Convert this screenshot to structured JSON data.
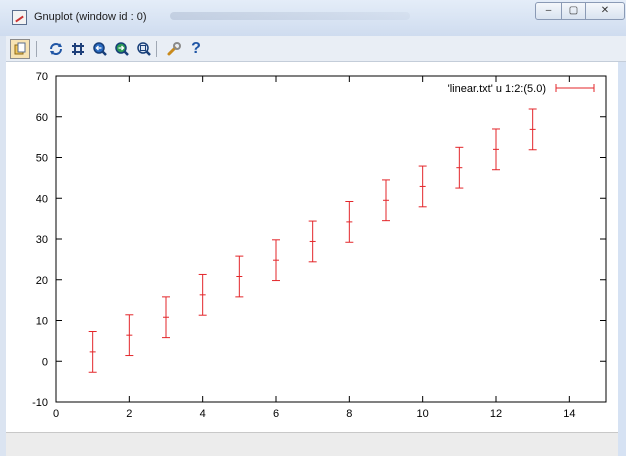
{
  "window": {
    "title": "Gnuplot (window id : 0)",
    "controls": {
      "minimize": "–",
      "maximize": "▢",
      "close": "✕"
    }
  },
  "toolbar": {
    "icons": [
      "copy-clipboard-icon",
      "replot-icon",
      "grid-icon",
      "zoom-previous-icon",
      "zoom-next-icon",
      "unzoom-icon",
      "options-wrench-icon",
      "help-icon"
    ]
  },
  "chart_data": {
    "type": "scatter",
    "errorbars": true,
    "color": "#e3262a",
    "legend": {
      "label": "'linear.txt' u 1:2:(5.0)",
      "position": "top-right"
    },
    "xlim": [
      0,
      15
    ],
    "ylim": [
      -10,
      70
    ],
    "xticks": [
      0,
      2,
      4,
      6,
      8,
      10,
      12,
      14
    ],
    "yticks": [
      -10,
      0,
      10,
      20,
      30,
      40,
      50,
      60,
      70
    ],
    "x": [
      1,
      2,
      3,
      4,
      5,
      6,
      7,
      8,
      9,
      10,
      11,
      12,
      13
    ],
    "y": [
      2.3,
      6.4,
      10.8,
      16.3,
      20.8,
      24.8,
      29.4,
      34.2,
      39.5,
      42.9,
      47.5,
      52.0,
      56.9
    ],
    "yerr": 5.0,
    "grid": false,
    "title": "",
    "xlabel": "",
    "ylabel": ""
  }
}
